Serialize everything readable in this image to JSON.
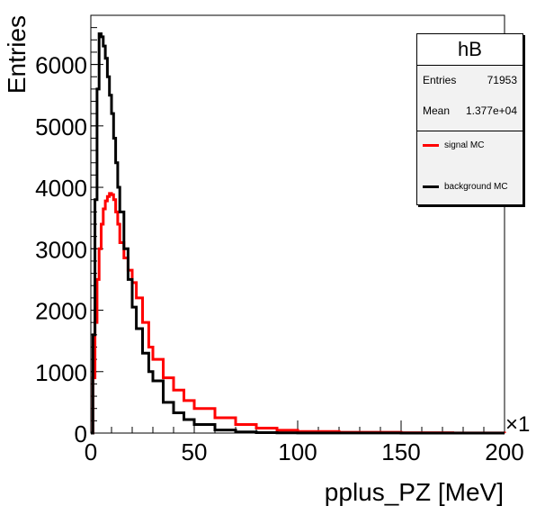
{
  "chart_data": {
    "type": "line",
    "xlabel": "pplus_PZ [MeV]",
    "ylabel": "Entries",
    "xlim": [
      0,
      200
    ],
    "ylim": [
      0,
      6800
    ],
    "x_ticks": [
      "0",
      "50",
      "100",
      "150",
      "200"
    ],
    "y_ticks": [
      "0",
      "1000",
      "2000",
      "3000",
      "4000",
      "5000",
      "6000"
    ],
    "x_exponent_label": "×1",
    "grid": false,
    "legend_position": "top-right",
    "series": [
      {
        "name": "signal MC",
        "color": "#ff0000",
        "x": [
          0,
          1,
          2,
          3,
          4,
          5,
          6,
          7,
          8,
          9,
          10,
          11,
          12,
          13,
          14,
          16,
          18,
          20,
          22,
          25,
          28,
          30,
          35,
          40,
          45,
          50,
          60,
          70,
          80,
          90,
          100,
          120,
          150,
          175,
          200
        ],
        "y": [
          0,
          900,
          1800,
          2500,
          3000,
          3400,
          3650,
          3780,
          3850,
          3900,
          3880,
          3800,
          3600,
          3400,
          3100,
          2850,
          2650,
          2450,
          2200,
          1800,
          1400,
          1200,
          900,
          700,
          530,
          400,
          250,
          140,
          80,
          45,
          25,
          12,
          5,
          2,
          0
        ]
      },
      {
        "name": "background MC",
        "color": "#000000",
        "x": [
          0,
          1,
          2,
          3,
          4,
          5,
          6,
          7,
          8,
          9,
          10,
          11,
          12,
          13,
          14,
          16,
          18,
          20,
          22,
          25,
          28,
          30,
          35,
          40,
          45,
          50,
          60,
          70,
          80,
          90,
          100,
          150,
          200
        ],
        "y": [
          0,
          1600,
          3800,
          5600,
          6500,
          6450,
          6300,
          6100,
          5800,
          5500,
          5200,
          4800,
          4400,
          4000,
          3600,
          3000,
          2500,
          2050,
          1700,
          1300,
          1000,
          850,
          500,
          330,
          220,
          140,
          50,
          18,
          7,
          3,
          1,
          0,
          0
        ]
      }
    ]
  },
  "stats": {
    "title": "hB",
    "entries_label": "Entries",
    "entries_value": "71953",
    "mean_label": "Mean",
    "mean_value": "1.377e+04"
  }
}
